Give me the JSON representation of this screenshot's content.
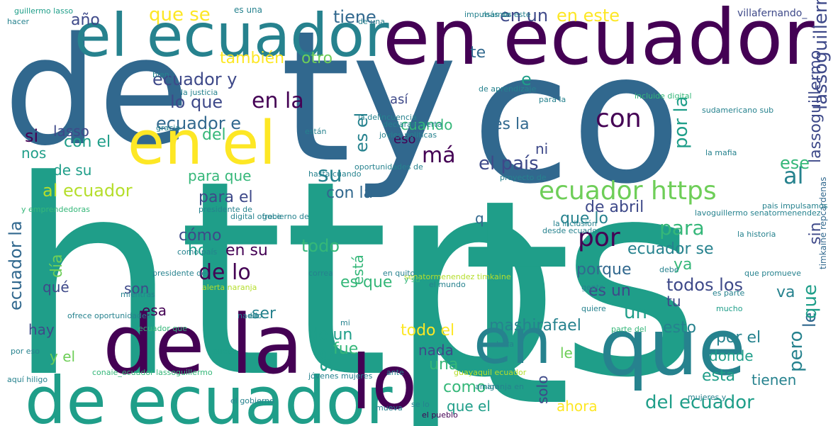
{
  "words": [
    "https",
    "t",
    "ty",
    "co",
    "de",
    "en ecuador",
    "el ecuador",
    "en el",
    "de la",
    "en",
    "que",
    "de ecuador",
    "lo",
    "año",
    "que se",
    "es una",
    "tiene",
    "en un",
    "en este",
    "villafernando_",
    "también",
    "otro",
    "te",
    "e",
    "lassoguillermo",
    "ecuador y",
    "en la",
    "lo que",
    "así",
    "lasso",
    "si",
    "ecuador e",
    "cuando",
    "con",
    "es la",
    "eso",
    "es el",
    "ni",
    "nos",
    "con el",
    "del",
    "má",
    "el país",
    "al",
    "de su",
    "su",
    "para que",
    "ecuador https",
    "ese",
    "al ecuador",
    "con la",
    "para el",
    "de abril",
    "para",
    "q",
    "que lo",
    "sin",
    "timkaine repcardenas",
    "lassoguillermo",
    "por",
    "cómo",
    "todo",
    "hoy",
    "en su",
    "ecuador se",
    "ecuador la",
    "día",
    "de lo",
    "porque",
    "ya",
    "qué",
    "son",
    "es que",
    "está",
    "es un",
    "todos los",
    "le",
    "que",
    "esa",
    "un",
    "tu",
    "va",
    "ser",
    "hay",
    "mashirafael",
    "esto",
    "todo el",
    "de un",
    "por el",
    "fue",
    "se",
    "y el",
    "nada",
    "donde",
    "le",
    "pero",
    "una",
    "esta",
    "tienen",
    "como",
    "solo",
    "que el",
    "ahora",
    "del ecuador",
    "por la",
    "senatormenendez timkaine",
    "alerta naranja",
    "guayaquil ecuador",
    "conaie_ecuador lassoguillermo",
    "ecuador que",
    "puede",
    "ello",
    "correa",
    "mucho",
    "parte del",
    "naranja en",
    "ante",
    "y su",
    "mi",
    "hora",
    "están",
    "gracia",
    "la justicia",
    "bien",
    "guillermo lasso",
    "más de",
    "de una",
    "incluide digital",
    "impulsamos este",
    "presidente de",
    "la inclusión",
    "gobierno de",
    "en quito",
    "la mafia",
    "desde ecuador",
    "oportunidades de",
    "y emprendedoras",
    "hasta cuando",
    "pais impulsamos",
    "la delincuencia",
    "declaran alerta",
    "mujeres y",
    "jóvenes mujeres",
    "lavoguillermo senatormenendez",
    "la historia",
    "es parte",
    "gente",
    "el pueblo",
    "el mundo",
    "que promueve",
    "proyecto de",
    "sudamericano sub",
    "de aprendizaje",
    "digital ofrece",
    "como país",
    "amigo",
    "mientras",
    "mueva",
    "el gobierno",
    "aquí hiligo",
    "jovies politicas",
    "para la",
    "quiere",
    "ofrece oportunidades",
    "presidente del",
    "por eso",
    "nadie",
    "hacer",
    "se lo",
    "debe",
    "nada que",
    "sus"
  ]
}
